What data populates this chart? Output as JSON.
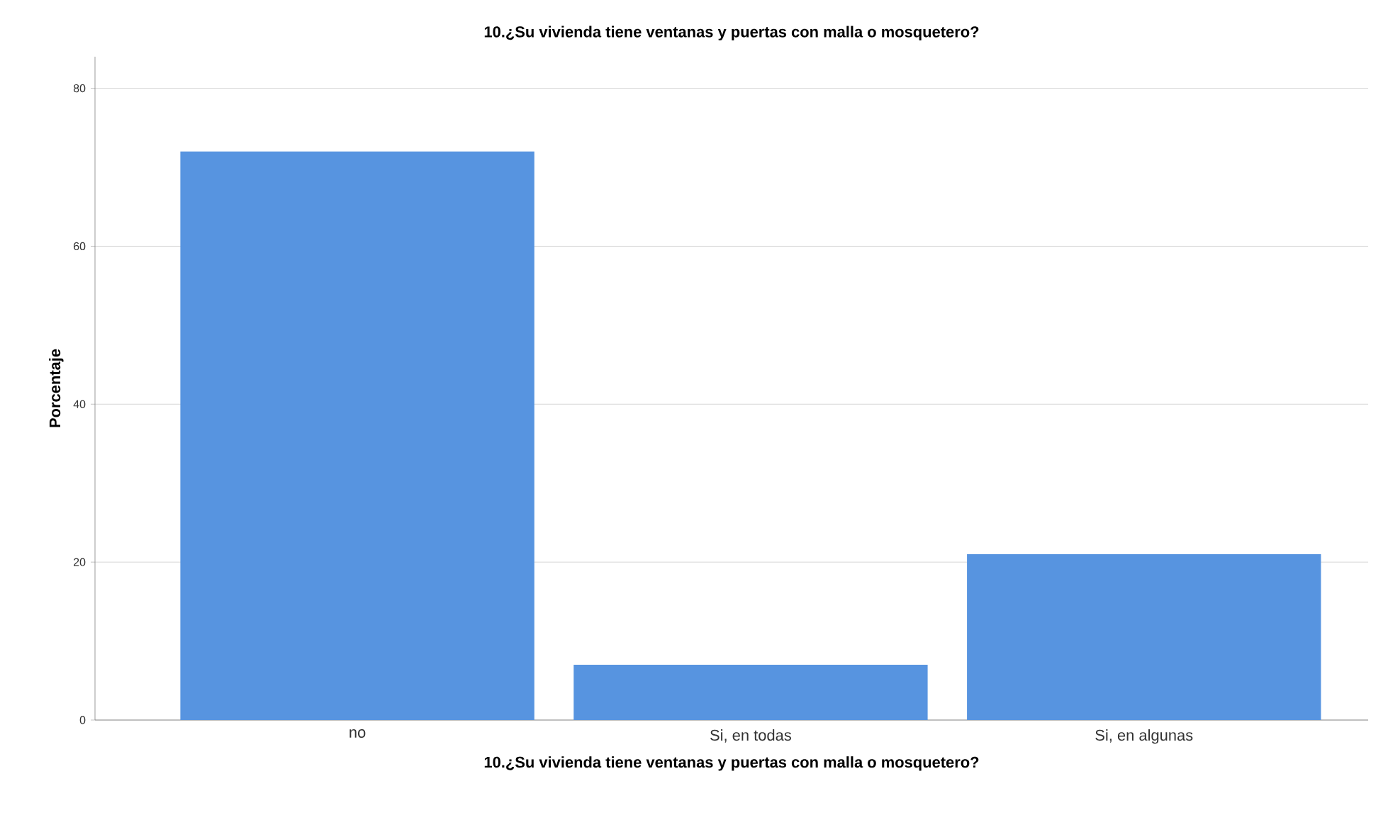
{
  "chart_data": {
    "type": "bar",
    "title": "10.¿Su vivienda tiene ventanas y puertas con malla o mosquetero?",
    "xlabel": "10.¿Su vivienda tiene ventanas y puertas con malla o mosquetero?",
    "ylabel": "Porcentaje",
    "categories": [
      "no",
      "Si, en todas",
      "Si, en algunas"
    ],
    "values": [
      72,
      7,
      21
    ],
    "color": "#5794e0",
    "ylim": [
      0,
      84
    ],
    "yticks": [
      0,
      20,
      40,
      60,
      80
    ],
    "grid": "y"
  }
}
